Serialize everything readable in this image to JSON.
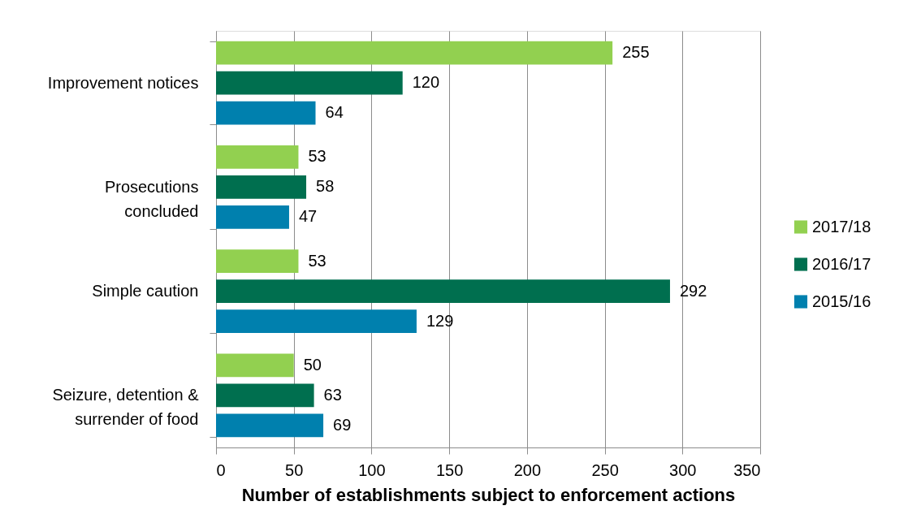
{
  "chart_data": {
    "type": "bar",
    "orientation": "horizontal",
    "xlabel": "Number of establishments subject to enforcement actions",
    "categories": [
      "Improvement notices",
      "Prosecutions\nconcluded",
      "Simple caution",
      "Seizure, detention &\nsurrender of food"
    ],
    "series": [
      {
        "name": "2017/18",
        "color": "#92d050",
        "values": [
          255,
          53,
          53,
          50
        ]
      },
      {
        "name": "2016/17",
        "color": "#006f4f",
        "values": [
          120,
          58,
          292,
          63
        ]
      },
      {
        "name": "2015/16",
        "color": "#0080ae",
        "values": [
          64,
          47,
          129,
          69
        ]
      }
    ],
    "xlim": [
      0,
      350
    ],
    "xticks": [
      0,
      50,
      100,
      150,
      200,
      250,
      300,
      350
    ],
    "grid": "x",
    "legend": "right",
    "data_labels": true
  }
}
